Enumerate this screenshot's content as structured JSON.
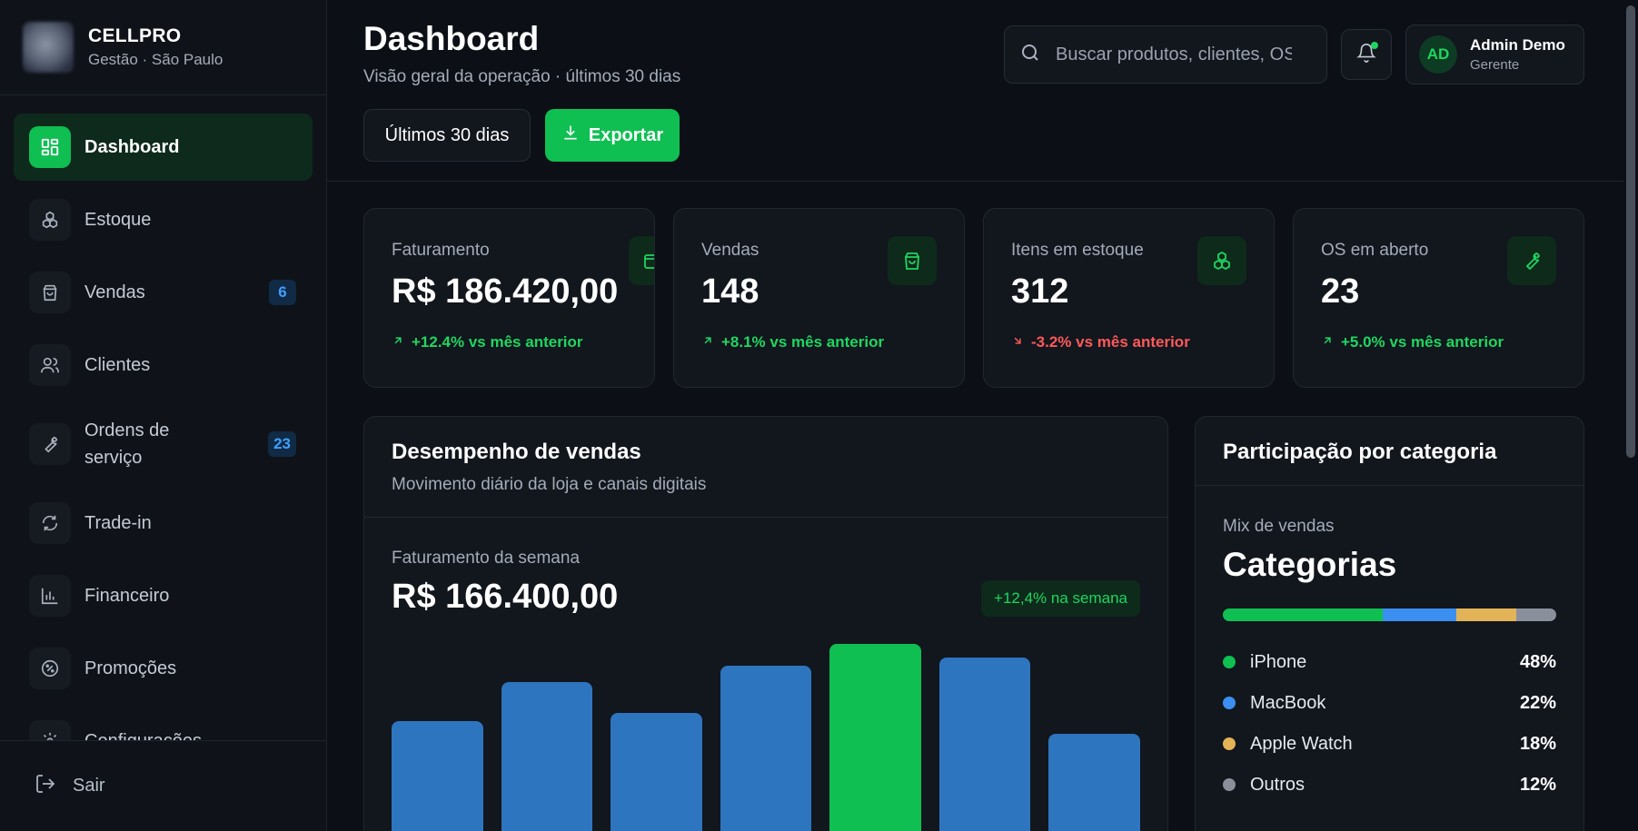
{
  "brand": {
    "name": "CELLPRO",
    "subtitle": "Gestão · São Paulo"
  },
  "sidebar": {
    "items": [
      {
        "label": "Dashboard",
        "icon": "grid-icon",
        "active": true
      },
      {
        "label": "Estoque",
        "icon": "boxes-icon"
      },
      {
        "label": "Vendas",
        "icon": "bag-icon",
        "badge": "6"
      },
      {
        "label": "Clientes",
        "icon": "users-icon"
      },
      {
        "label": "Ordens de serviço",
        "icon": "wrench-icon",
        "badge": "23"
      },
      {
        "label": "Trade-in",
        "icon": "refresh-icon"
      },
      {
        "label": "Financeiro",
        "icon": "bar-chart-icon"
      },
      {
        "label": "Promoções",
        "icon": "percent-badge-icon"
      },
      {
        "label": "Configurações",
        "icon": "gear-icon"
      }
    ],
    "logout_label": "Sair"
  },
  "header": {
    "title": "Dashboard",
    "subtitle": "Visão geral da operação · últimos 30 dias",
    "period_button": "Últimos 30 dias",
    "export_button": "Exportar",
    "search_placeholder": "Buscar produtos, clientes, OS",
    "user": {
      "initials": "AD",
      "name": "Admin Demo",
      "role": "Gerente"
    }
  },
  "kpis": [
    {
      "label": "Faturamento",
      "value": "R$ 186.420,00",
      "delta": "+12.4% vs mês anterior",
      "trend": "up",
      "icon": "wallet-icon"
    },
    {
      "label": "Vendas",
      "value": "148",
      "delta": "+8.1% vs mês anterior",
      "trend": "up",
      "icon": "bag-icon"
    },
    {
      "label": "Itens em estoque",
      "value": "312",
      "delta": "-3.2% vs mês anterior",
      "trend": "down",
      "icon": "boxes-icon"
    },
    {
      "label": "OS em aberto",
      "value": "23",
      "delta": "+5.0% vs mês anterior",
      "trend": "up",
      "icon": "wrench-icon"
    }
  ],
  "sales_panel": {
    "title": "Desempenho de vendas",
    "subtitle": "Movimento diário da loja e canais digitais",
    "week_label": "Faturamento da semana",
    "week_value": "R$ 166.400,00",
    "week_badge": "+12,4% na semana"
  },
  "chart_data": {
    "type": "bar",
    "title": "",
    "values": [
      118,
      159,
      127,
      177,
      200,
      186,
      104
    ],
    "highlight_index": 4,
    "ylim": [
      0,
      200
    ],
    "colors": {
      "bar": "#2e75bf",
      "highlight": "#0fbf52"
    }
  },
  "category_panel": {
    "title": "Participação por categoria",
    "mix_label": "Mix de vendas",
    "heading": "Categorias",
    "categories": [
      {
        "name": "iPhone",
        "pct": "48%",
        "share": 48,
        "color": "#0fbf52"
      },
      {
        "name": "MacBook",
        "pct": "22%",
        "share": 22,
        "color": "#3b8ff0"
      },
      {
        "name": "Apple Watch",
        "pct": "18%",
        "share": 18,
        "color": "#e2b457"
      },
      {
        "name": "Outros",
        "pct": "12%",
        "share": 12,
        "color": "#8a8f9c"
      }
    ]
  },
  "colors": {
    "accent": "#0fbf52",
    "positive": "#1fd660",
    "negative": "#ff5a5a",
    "badge": "#3fa0ff"
  }
}
